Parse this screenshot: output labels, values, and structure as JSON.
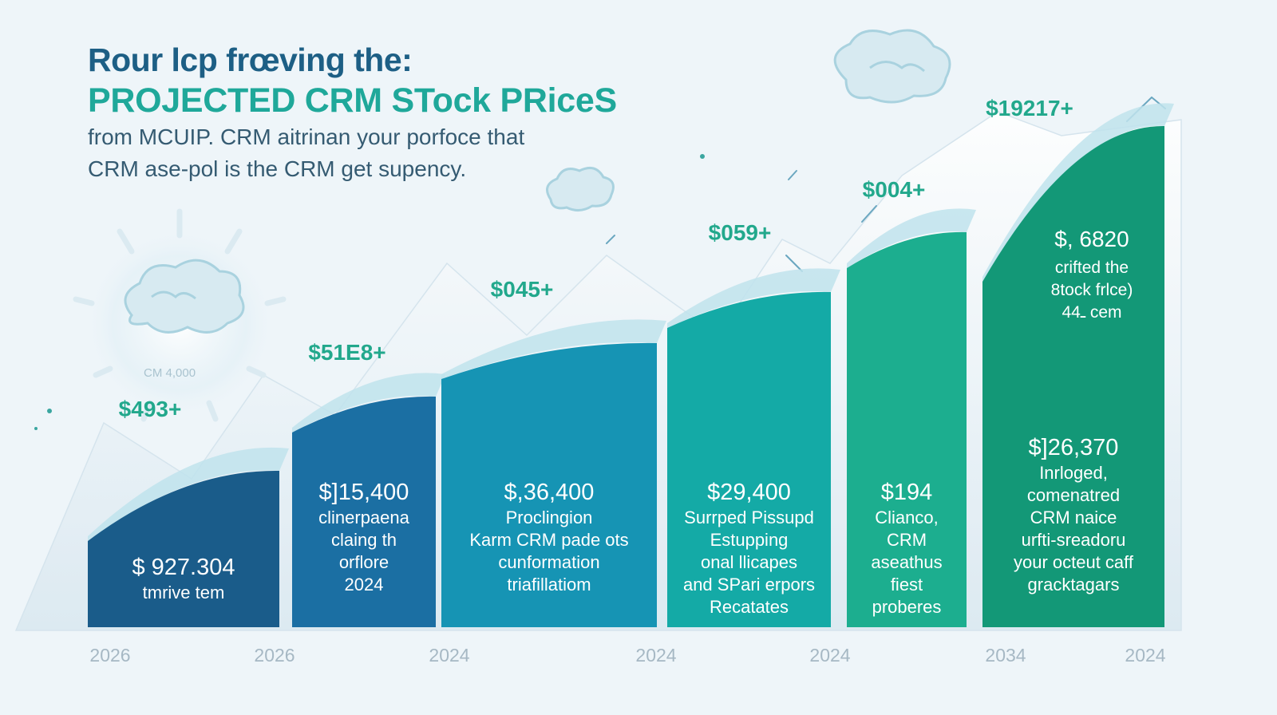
{
  "header": {
    "title_line1": "Rour lcp frœving the:",
    "title_line2": "PROJECTED CRM STock PRiceS",
    "subtitle_line1": "from MCUIP. CRM aitrinan your porfoce that",
    "subtitle_line2": "CRM ase-pol is the CRM get supency."
  },
  "decor": {
    "glow_label": "CM 4,000"
  },
  "colors": {
    "background": "#eef5f9",
    "bars": [
      "#1a5c8a",
      "#1b6fa3",
      "#1694b4",
      "#14aaa6",
      "#1cae8f",
      "#139877"
    ],
    "top_labels": "#22a88c",
    "inner_text": "#ffffff",
    "axis_labels": "#a6b8c4"
  },
  "icons": [
    "cloud-icon",
    "sun-glow-icon",
    "arrow-icon",
    "sparkle-icon"
  ],
  "chart_data": {
    "type": "bar",
    "title": "PROJECTED CRM STock PRiceS",
    "x_labels": [
      "2026",
      "2026",
      "2024",
      "2024",
      "2024",
      "2034",
      "2024"
    ],
    "top_labels": [
      "$493+",
      "$51E8+",
      "$045+",
      "$059+",
      "$004+",
      "$19217+"
    ],
    "bars": [
      {
        "value": "$ 927.304",
        "lines": [
          "tmrive tem"
        ]
      },
      {
        "value": "$]15,400",
        "lines": [
          "clinerpaena",
          "claing th",
          "orflore",
          "2024"
        ]
      },
      {
        "value": "$,36,400",
        "lines": [
          "Proclingion",
          "Karm CRM pade ots",
          "cunformation",
          "triafillatiom"
        ]
      },
      {
        "value": "$29,400",
        "lines": [
          "Surrped Pissupd",
          "Estupping",
          "onal llicapes",
          "and SPari erpors",
          "Recatates"
        ]
      },
      {
        "value": "$194",
        "lines": [
          "Clianco,",
          "CRM",
          "aseathus",
          "fiest",
          "proberes"
        ]
      },
      {
        "value": "$]26,370",
        "lines": [
          "Inrloged,",
          "comenatred",
          "CRM naice",
          "urfti-sreadoru",
          "your octeut caff",
          "gracktagars"
        ]
      }
    ],
    "highlight": {
      "value": "$, 6820",
      "lines": [
        "crifted the",
        "8tock frlce)",
        "4ـ4 cem"
      ]
    },
    "trend": "rising",
    "grid": false,
    "legend": "none"
  }
}
